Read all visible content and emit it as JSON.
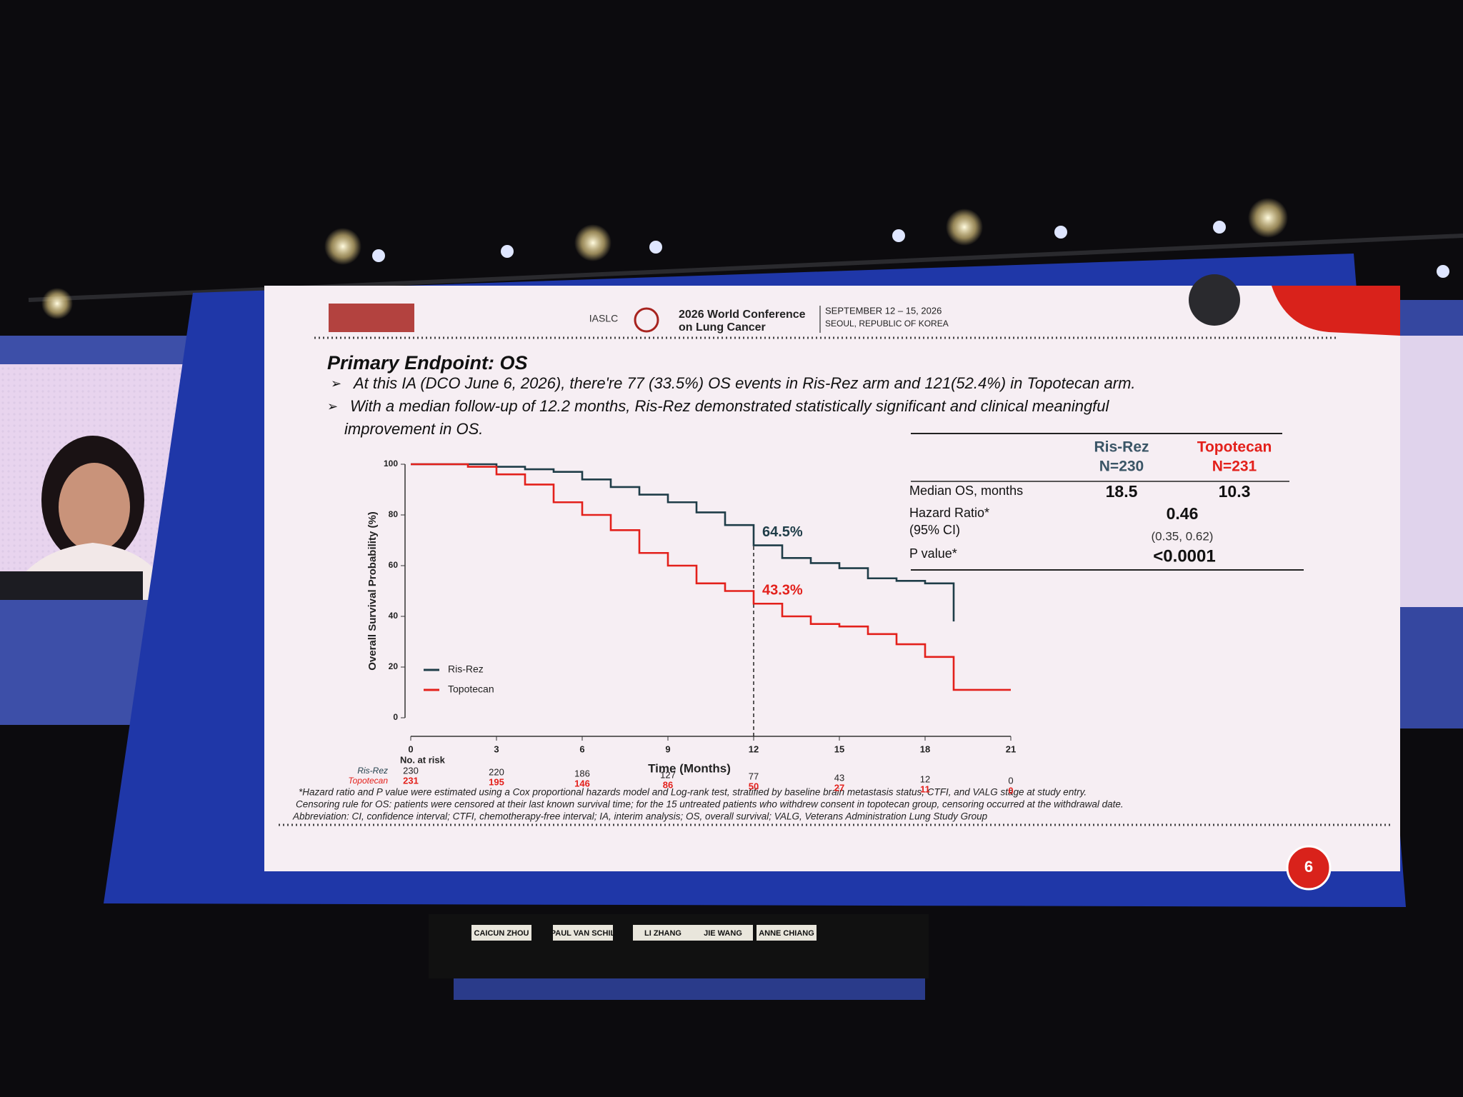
{
  "header": {
    "society": "IASLC",
    "conference_line1": "2026 World Conference",
    "conference_line2": "on Lung Cancer",
    "dates": "SEPTEMBER 12 – 15, 2026",
    "location": "SEOUL, REPUBLIC OF KOREA"
  },
  "slide": {
    "title": "Primary Endpoint: OS",
    "bullets": [
      "At this IA (DCO June 6, 2026), there're 77 (33.5%) OS events in Ris-Rez arm and 121(52.4%) in Topotecan arm.",
      "With a median follow-up of 12.2 months, Ris-Rez demonstrated statistically significant and clinical meaningful",
      "improvement in OS."
    ],
    "footnotes": [
      "*Hazard ratio and P value were estimated using a Cox proportional hazards model and Log-rank test, stratified by baseline brain metastasis status, CTFI, and VALG stage at study entry.",
      "Censoring rule for OS: patients were censored at their last known survival time; for the 15 untreated patients who withdrew consent in topotecan group, censoring occurred at the withdrawal date.",
      "Abbreviation: CI, confidence interval; CTFI, chemotherapy-free interval; IA, interim analysis; OS, overall survival; VALG, Veterans Administration Lung Study Group"
    ],
    "page_number": "6"
  },
  "summary_table": {
    "columns": [
      {
        "name": "Ris-Rez",
        "n": "N=230"
      },
      {
        "name": "Topotecan",
        "n": "N=231"
      }
    ],
    "rows": [
      {
        "label": "Median OS, months",
        "values": [
          "18.5",
          "10.3"
        ]
      },
      {
        "label": "Hazard Ratio*",
        "sublabel": "(95% CI)",
        "value": "0.46",
        "ci": "(0.35, 0.62)"
      },
      {
        "label": "P value*",
        "value": "<0.0001"
      }
    ]
  },
  "chart_data": {
    "type": "step",
    "xlabel": "Time (Months)",
    "ylabel": "Overall Survival Probability (%)",
    "x": [
      0,
      1,
      2,
      3,
      4,
      5,
      6,
      7,
      8,
      9,
      10,
      11,
      12,
      13,
      14,
      15,
      16,
      17,
      18,
      19,
      20,
      21
    ],
    "series": [
      {
        "name": "Ris-Rez",
        "color": "#1f3d48",
        "values": [
          100,
          100,
          100,
          99,
          98,
          97,
          94,
          91,
          88,
          85,
          81,
          76,
          68,
          63,
          61,
          59,
          55,
          54,
          53,
          38,
          null,
          null
        ]
      },
      {
        "name": "Topotecan",
        "color": "#e3201b",
        "values": [
          100,
          100,
          99,
          96,
          92,
          85,
          80,
          74,
          65,
          60,
          53,
          50,
          45,
          40,
          37,
          36,
          33,
          29,
          24,
          11,
          11,
          11
        ]
      }
    ],
    "xlim": [
      0,
      21
    ],
    "ylim": [
      0,
      100
    ],
    "xticks": [
      0,
      3,
      6,
      9,
      12,
      15,
      18,
      21
    ],
    "yticks": [
      0,
      20,
      40,
      60,
      80,
      100
    ],
    "reference_x": 12,
    "annotations": [
      "64.5%",
      "43.3%"
    ],
    "legend": "lower left",
    "risk_table": {
      "title": "No. at risk",
      "rows": [
        {
          "name": "Ris-Rez",
          "values": [
            "230",
            "220",
            "186",
            "127",
            "77",
            "43",
            "12",
            "0"
          ]
        },
        {
          "name": "Topotecan",
          "values": [
            "231",
            "195",
            "146",
            "86",
            "50",
            "27",
            "11",
            "0"
          ]
        }
      ]
    }
  },
  "panel": [
    "CAICUN ZHOU",
    "PAUL VAN SCHIL",
    "LI ZHANG",
    "JIE WANG",
    "ANNE CHIANG"
  ]
}
